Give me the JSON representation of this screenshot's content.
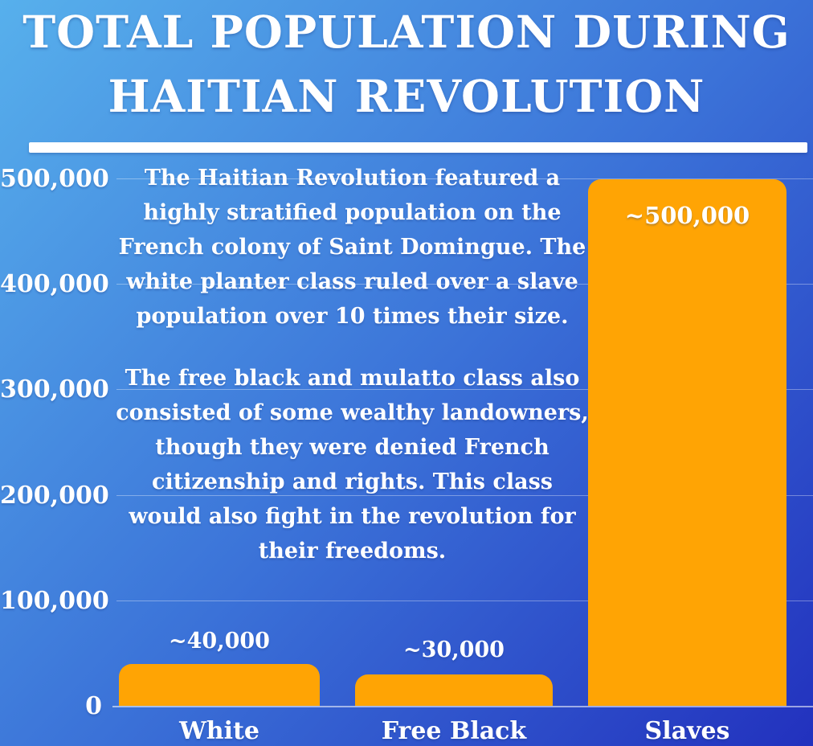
{
  "title": {
    "line1": "TOTAL POPULATION DURING",
    "line2": "HAITIAN REVOLUTION"
  },
  "annotation": {
    "paragraph1": "The Haitian Revolution featured a highly stratified population on the French colony of Saint Domingue. The white planter class ruled over a slave population over 10 times their size.",
    "paragraph2": "The free black and mulatto class also consisted of some wealthy landowners, though they were denied French citizenship and rights. This class would also fight in the revolution for their freedoms."
  },
  "chart_data": {
    "type": "bar",
    "title": "Total Population During Haitian Revolution",
    "categories": [
      "White",
      "Free Black",
      "Slaves"
    ],
    "values": [
      40000,
      30000,
      500000
    ],
    "value_labels": [
      "~40,000",
      "~30,000",
      "~500,000"
    ],
    "yticks": [
      "500,000",
      "400,000",
      "300,000",
      "200,000",
      "100,000",
      "0"
    ],
    "ylim": [
      0,
      500000
    ],
    "grid": true,
    "legend": "none",
    "xlabel": "",
    "ylabel": "",
    "colors": {
      "bar": "#FFA404",
      "background_top_left": "#57B0EC",
      "background_mid": "#3B72D8",
      "background_bottom_right": "#2231BE",
      "text": "#FFFFFF",
      "gridline": "rgba(255,255,255,0.35)"
    }
  }
}
